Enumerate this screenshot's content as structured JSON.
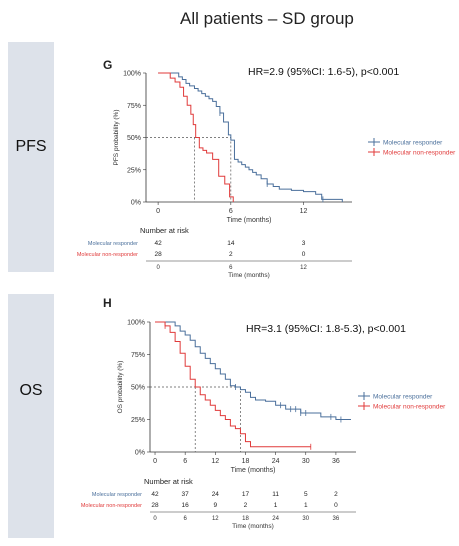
{
  "figure": {
    "title": "All patients – SD group",
    "colors": {
      "responder": "#4a6f9b",
      "nonresponder": "#e03a3a",
      "sidebar": "#dde2ea"
    }
  },
  "chart_data": [
    {
      "panel_letter": "G",
      "side_label": "PFS",
      "type": "line",
      "title": "",
      "hr_text": "HR=2.9 (95%CI: 1.6-5), p<0.001",
      "xlabel": "Time (months)",
      "ylabel": "PFS probability (%)",
      "xlim": [
        -1,
        16
      ],
      "ylim": [
        0,
        100
      ],
      "x_ticks": [
        "0",
        "6",
        "12"
      ],
      "y_ticks": [
        "0%",
        "25%",
        "50%",
        "75%",
        "100%"
      ],
      "median_lines": [
        3,
        6
      ],
      "legend": {
        "placement": "right",
        "entries": [
          "Molecular responder",
          "Molecular non-responder"
        ]
      },
      "series": [
        {
          "name": "Molecular responder",
          "color": "#4a6f9b",
          "x": [
            0,
            1.5,
            1.7,
            2.0,
            2.3,
            2.6,
            3.0,
            3.3,
            3.6,
            3.9,
            4.2,
            4.5,
            4.8,
            5.1,
            5.4,
            5.8,
            6.0,
            6.3,
            6.6,
            6.9,
            7.2,
            7.5,
            7.8,
            8.1,
            8.5,
            9.0,
            9.5,
            10,
            11,
            12,
            13,
            13.5,
            15,
            15.2
          ],
          "y": [
            100,
            100,
            97,
            95,
            92,
            90,
            88,
            86,
            84,
            82,
            80,
            78,
            74,
            69,
            62,
            52,
            48,
            33,
            31,
            29,
            27,
            25,
            23,
            21,
            18,
            14,
            12,
            10,
            9,
            8,
            6,
            2,
            2,
            0
          ],
          "censor_x": [
            5.1,
            9.0,
            13.6
          ]
        },
        {
          "name": "Molecular non-responder",
          "color": "#e03a3a",
          "x": [
            0,
            0.7,
            1.0,
            1.4,
            1.8,
            2.1,
            2.4,
            2.7,
            2.9,
            3.1,
            3.4,
            3.7,
            4.0,
            4.5,
            5.0,
            5.5,
            5.9,
            6.2
          ],
          "y": [
            100,
            100,
            96,
            93,
            89,
            82,
            75,
            68,
            60,
            50,
            42,
            40,
            38,
            33,
            20,
            14,
            4,
            0
          ],
          "censor_x": []
        }
      ],
      "risk_table": {
        "title": "Number at risk",
        "x_ticks": [
          "0",
          "6",
          "12"
        ],
        "xlabel": "Time (months)",
        "rows": [
          {
            "label": "Molecular responder",
            "values": [
              "42",
              "14",
              "3"
            ]
          },
          {
            "label": "Molecular non-responder",
            "values": [
              "28",
              "2",
              "0"
            ]
          }
        ]
      }
    },
    {
      "panel_letter": "H",
      "side_label": "OS",
      "type": "line",
      "title": "",
      "hr_text": "HR=3.1 (95%CI: 1.8-5.3), p<0.001",
      "xlabel": "Time (months)",
      "ylabel": "OS probability (%)",
      "xlim": [
        -1,
        40
      ],
      "ylim": [
        0,
        100
      ],
      "x_ticks": [
        "0",
        "6",
        "12",
        "18",
        "24",
        "30",
        "36"
      ],
      "y_ticks": [
        "0%",
        "25%",
        "50%",
        "75%",
        "100%"
      ],
      "median_lines": [
        8,
        17
      ],
      "legend": {
        "placement": "right",
        "entries": [
          "Molecular responder",
          "Molecular non-responder"
        ]
      },
      "series": [
        {
          "name": "Molecular responder",
          "color": "#4a6f9b",
          "x": [
            0,
            3,
            4,
            5,
            6,
            7,
            8,
            9,
            10,
            11,
            12,
            13,
            14,
            15,
            16,
            17,
            18,
            19,
            20,
            22,
            24,
            26,
            29,
            33,
            36,
            37,
            39
          ],
          "y": [
            100,
            100,
            97,
            93,
            90,
            86,
            81,
            76,
            72,
            68,
            64,
            60,
            56,
            51,
            50,
            48,
            46,
            42,
            40,
            39,
            36,
            33,
            30,
            27,
            25,
            25,
            25
          ],
          "censor_x": [
            16,
            25,
            27,
            28,
            29,
            30,
            35,
            37
          ]
        },
        {
          "name": "Molecular non-responder",
          "color": "#e03a3a",
          "x": [
            0,
            1,
            2,
            3,
            4,
            5,
            6,
            7,
            8,
            9,
            10,
            11,
            12,
            13,
            14,
            15,
            16,
            17,
            18,
            19,
            20,
            31
          ],
          "y": [
            100,
            100,
            97,
            92,
            85,
            76,
            66,
            56,
            50,
            44,
            40,
            36,
            32,
            28,
            25,
            20,
            18,
            14,
            8,
            4,
            4,
            4
          ],
          "censor_x": [
            2,
            31
          ]
        }
      ],
      "risk_table": {
        "title": "Number at risk",
        "x_ticks": [
          "0",
          "6",
          "12",
          "18",
          "24",
          "30",
          "36"
        ],
        "xlabel": "Time (months)",
        "rows": [
          {
            "label": "Molecular responder",
            "values": [
              "42",
              "37",
              "24",
              "17",
              "11",
              "5",
              "2"
            ]
          },
          {
            "label": "Molecular non-responder",
            "values": [
              "28",
              "16",
              "9",
              "2",
              "1",
              "1",
              "0"
            ]
          }
        ]
      }
    }
  ]
}
